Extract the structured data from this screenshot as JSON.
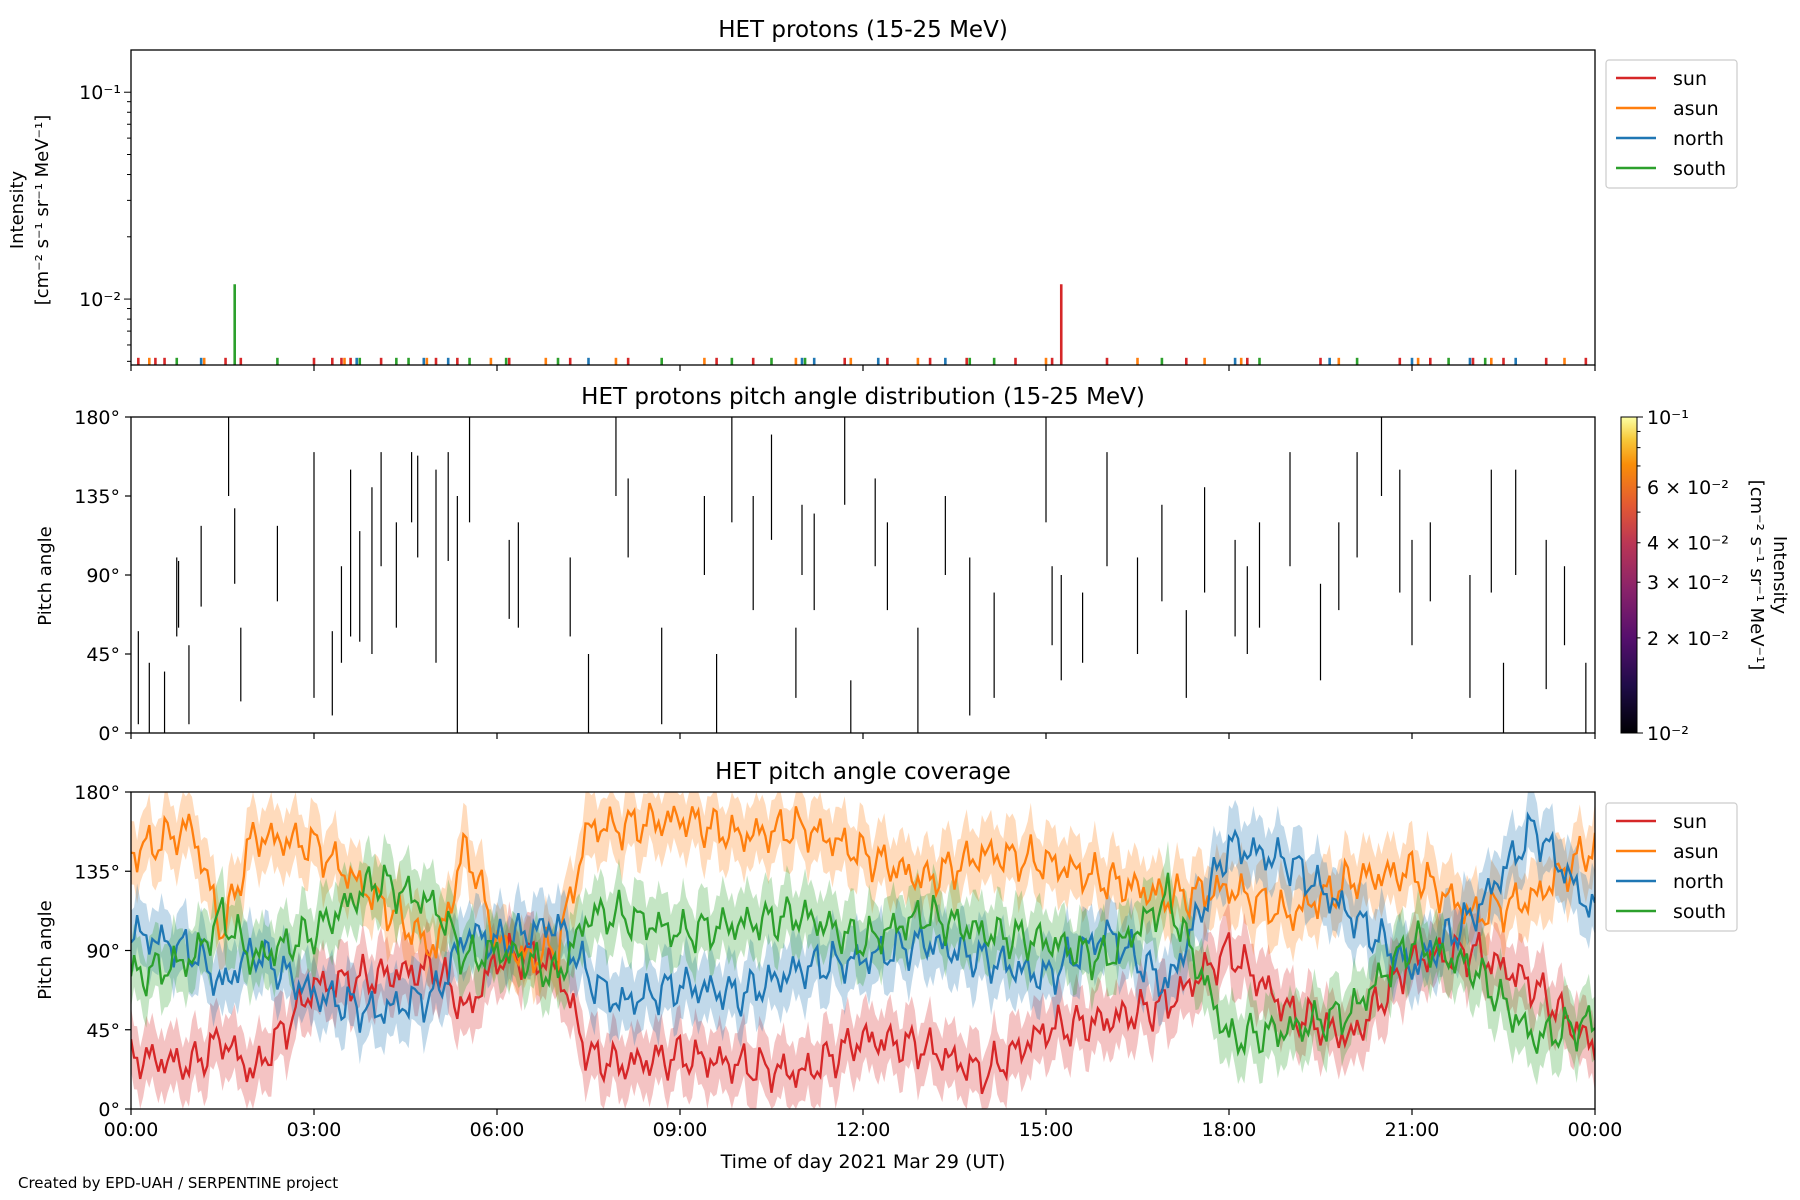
{
  "colors": {
    "sun": "#d62728",
    "asun": "#ff7f0e",
    "north": "#1f77b4",
    "south": "#2ca02c"
  },
  "footer": "Created by EPD-UAH / SERPENTINE project",
  "chart_data": [
    {
      "type": "line",
      "title": "HET protons (15-25 MeV)",
      "ylabel_line1": "Intensity",
      "ylabel_line2": "[cm⁻² s⁻¹ sr⁻¹ MeV⁻¹]",
      "yscale": "log",
      "ylim": [
        0.0048,
        0.16
      ],
      "yticks": [
        {
          "value": 0.1,
          "label": "10⁻¹"
        },
        {
          "value": 0.01,
          "label": "10⁻²"
        }
      ],
      "xlim_hours": [
        0,
        24
      ],
      "legend": {
        "placement": "outside-right",
        "entries": [
          "sun",
          "asun",
          "north",
          "south"
        ]
      },
      "baseline_spike_value": 0.0052,
      "series": [
        {
          "name": "sun",
          "spikes_hours": [
            0.12,
            0.4,
            0.55,
            1.55,
            1.8,
            3.0,
            3.3,
            3.45,
            3.6,
            4.1,
            5.0,
            5.35,
            6.2,
            7.2,
            8.15,
            9.6,
            10.2,
            11.7,
            12.4,
            13.1,
            13.7,
            14.5,
            15.1,
            15.25,
            16.0,
            17.3,
            18.3,
            19.5,
            20.8,
            21.3,
            22.0,
            22.5,
            23.2,
            23.85
          ],
          "values": [
            0.0052,
            0.0052,
            0.0052,
            0.0052,
            0.0052,
            0.0052,
            0.0052,
            0.0052,
            0.0052,
            0.0052,
            0.0052,
            0.0052,
            0.0052,
            0.0052,
            0.0052,
            0.0052,
            0.0052,
            0.0052,
            0.0052,
            0.0052,
            0.0052,
            0.0052,
            0.0052,
            0.0118,
            0.0052,
            0.0052,
            0.0052,
            0.0052,
            0.0052,
            0.0052,
            0.0052,
            0.0052,
            0.0052,
            0.0052
          ]
        },
        {
          "name": "asun",
          "spikes_hours": [
            0.3,
            1.2,
            3.5,
            4.85,
            5.9,
            6.8,
            7.95,
            9.4,
            10.9,
            11.8,
            12.9,
            15.0,
            16.5,
            17.6,
            18.2,
            19.8,
            21.1,
            22.3,
            23.5
          ],
          "values": [
            0.0052,
            0.0052,
            0.0052,
            0.0052,
            0.0052,
            0.0052,
            0.0052,
            0.0052,
            0.0052,
            0.0052,
            0.0052,
            0.0052,
            0.0052,
            0.0052,
            0.0052,
            0.0052,
            0.0052,
            0.0052,
            0.0052
          ]
        },
        {
          "name": "north",
          "spikes_hours": [
            1.15,
            3.7,
            4.8,
            5.2,
            7.5,
            11.0,
            11.2,
            12.25,
            13.35,
            18.1,
            19.65,
            21.0,
            21.95,
            22.7
          ],
          "values": [
            0.0052,
            0.0052,
            0.0052,
            0.0052,
            0.0052,
            0.0052,
            0.0052,
            0.0052,
            0.0052,
            0.0052,
            0.0052,
            0.0052,
            0.0052,
            0.0052
          ]
        },
        {
          "name": "south",
          "spikes_hours": [
            0.75,
            1.7,
            2.4,
            3.75,
            4.35,
            4.55,
            5.55,
            6.15,
            7.0,
            8.7,
            9.85,
            10.5,
            11.05,
            13.75,
            14.15,
            16.9,
            18.5,
            20.1,
            21.6,
            22.2
          ],
          "values": [
            0.0052,
            0.0118,
            0.0052,
            0.0052,
            0.0052,
            0.0052,
            0.0052,
            0.0052,
            0.0052,
            0.0052,
            0.0052,
            0.0052,
            0.0052,
            0.0052,
            0.0052,
            0.0052,
            0.0052,
            0.0052,
            0.0052,
            0.0052
          ]
        }
      ]
    },
    {
      "type": "heatmap",
      "title": "HET protons pitch angle distribution (15-25 MeV)",
      "ylabel": "Pitch angle",
      "ylim": [
        0,
        180
      ],
      "yticks": [
        {
          "value": 0,
          "label": "0°"
        },
        {
          "value": 45,
          "label": "45°"
        },
        {
          "value": 90,
          "label": "90°"
        },
        {
          "value": 135,
          "label": "135°"
        },
        {
          "value": 180,
          "label": "180°"
        }
      ],
      "xlim_hours": [
        0,
        24
      ],
      "colorbar": {
        "label_line1": "Intensity",
        "label_line2": "[cm⁻² s⁻¹ sr⁻¹ MeV⁻¹]",
        "scale": "log",
        "range": [
          0.01,
          0.1
        ],
        "cmap": "inferno",
        "ticks": [
          {
            "value": 0.1,
            "label": "10⁻¹"
          },
          {
            "value": 0.06,
            "label": "6 × 10⁻²"
          },
          {
            "value": 0.04,
            "label": "4 × 10⁻²"
          },
          {
            "value": 0.03,
            "label": "3 × 10⁻²"
          },
          {
            "value": 0.02,
            "label": "2 × 10⁻²"
          },
          {
            "value": 0.01,
            "label": "10⁻²"
          }
        ]
      },
      "segments": [
        [
          0.12,
          5,
          58
        ],
        [
          0.3,
          0,
          40
        ],
        [
          0.55,
          0,
          35
        ],
        [
          0.75,
          55,
          100
        ],
        [
          0.78,
          60,
          98
        ],
        [
          0.95,
          5,
          50
        ],
        [
          1.15,
          72,
          118
        ],
        [
          1.6,
          135,
          180
        ],
        [
          1.7,
          85,
          128
        ],
        [
          1.8,
          18,
          60
        ],
        [
          2.4,
          75,
          118
        ],
        [
          3.0,
          20,
          160
        ],
        [
          3.3,
          10,
          58
        ],
        [
          3.45,
          40,
          95
        ],
        [
          3.6,
          55,
          150
        ],
        [
          3.75,
          52,
          115
        ],
        [
          3.95,
          45,
          140
        ],
        [
          4.1,
          95,
          160
        ],
        [
          4.35,
          60,
          120
        ],
        [
          4.6,
          120,
          160
        ],
        [
          4.7,
          100,
          158
        ],
        [
          5.0,
          40,
          150
        ],
        [
          5.2,
          98,
          160
        ],
        [
          5.35,
          0,
          135
        ],
        [
          5.55,
          120,
          180
        ],
        [
          6.2,
          65,
          110
        ],
        [
          6.35,
          60,
          120
        ],
        [
          7.2,
          55,
          100
        ],
        [
          7.5,
          0,
          45
        ],
        [
          7.95,
          135,
          180
        ],
        [
          8.15,
          100,
          145
        ],
        [
          8.7,
          5,
          60
        ],
        [
          9.4,
          90,
          135
        ],
        [
          9.6,
          0,
          45
        ],
        [
          9.85,
          120,
          180
        ],
        [
          10.2,
          70,
          135
        ],
        [
          10.5,
          110,
          170
        ],
        [
          10.9,
          20,
          60
        ],
        [
          11.0,
          90,
          130
        ],
        [
          11.2,
          70,
          125
        ],
        [
          11.7,
          130,
          180
        ],
        [
          11.8,
          0,
          30
        ],
        [
          12.2,
          95,
          145
        ],
        [
          12.4,
          70,
          120
        ],
        [
          12.9,
          0,
          60
        ],
        [
          13.35,
          90,
          135
        ],
        [
          13.75,
          10,
          100
        ],
        [
          14.15,
          20,
          80
        ],
        [
          15.0,
          120,
          180
        ],
        [
          15.1,
          50,
          95
        ],
        [
          15.25,
          30,
          90
        ],
        [
          15.6,
          40,
          80
        ],
        [
          16.0,
          95,
          160
        ],
        [
          16.5,
          45,
          100
        ],
        [
          16.9,
          75,
          130
        ],
        [
          17.3,
          20,
          70
        ],
        [
          17.6,
          80,
          140
        ],
        [
          18.1,
          55,
          110
        ],
        [
          18.3,
          45,
          95
        ],
        [
          18.5,
          60,
          120
        ],
        [
          19.0,
          95,
          160
        ],
        [
          19.5,
          30,
          85
        ],
        [
          19.8,
          70,
          120
        ],
        [
          20.1,
          100,
          160
        ],
        [
          20.5,
          135,
          180
        ],
        [
          20.8,
          80,
          150
        ],
        [
          21.0,
          50,
          110
        ],
        [
          21.3,
          75,
          120
        ],
        [
          21.95,
          20,
          90
        ],
        [
          22.3,
          80,
          150
        ],
        [
          22.5,
          0,
          40
        ],
        [
          22.7,
          90,
          150
        ],
        [
          23.2,
          25,
          110
        ],
        [
          23.5,
          50,
          95
        ],
        [
          23.85,
          0,
          40
        ]
      ]
    },
    {
      "type": "line",
      "title": "HET pitch angle coverage",
      "ylabel": "Pitch angle",
      "xlabel": "Time of day 2021 Mar 29 (UT)",
      "ylim": [
        0,
        180
      ],
      "yticks": [
        {
          "value": 0,
          "label": "0°"
        },
        {
          "value": 45,
          "label": "45°"
        },
        {
          "value": 90,
          "label": "90°"
        },
        {
          "value": 135,
          "label": "135°"
        },
        {
          "value": 180,
          "label": "180°"
        }
      ],
      "xlim_hours": [
        0,
        24
      ],
      "xticks": [
        {
          "value": 0,
          "label": "00:00"
        },
        {
          "value": 3,
          "label": "03:00"
        },
        {
          "value": 6,
          "label": "06:00"
        },
        {
          "value": 9,
          "label": "09:00"
        },
        {
          "value": 12,
          "label": "12:00"
        },
        {
          "value": 15,
          "label": "15:00"
        },
        {
          "value": 18,
          "label": "18:00"
        },
        {
          "value": 21,
          "label": "21:00"
        },
        {
          "value": 24,
          "label": "00:00"
        }
      ],
      "legend": {
        "placement": "outside-right",
        "entries": [
          "sun",
          "asun",
          "north",
          "south"
        ]
      },
      "band_halfwidth_deg": 18,
      "series": [
        {
          "name": "sun",
          "x_hours": [
            0,
            1,
            1.5,
            2,
            3,
            4,
            5,
            5.5,
            6,
            6.5,
            7,
            7.5,
            8,
            9,
            10,
            11,
            12,
            13,
            14,
            15,
            16,
            17,
            18,
            19,
            20,
            21,
            22,
            23,
            24
          ],
          "values": [
            30,
            25,
            40,
            20,
            70,
            75,
            80,
            55,
            85,
            88,
            80,
            30,
            25,
            30,
            25,
            20,
            40,
            35,
            20,
            45,
            50,
            60,
            90,
            55,
            40,
            85,
            90,
            70,
            35
          ]
        },
        {
          "name": "asun",
          "x_hours": [
            0,
            1,
            1.5,
            2,
            3,
            4,
            5,
            5.5,
            6,
            6.5,
            7,
            7.5,
            8,
            9,
            10,
            11,
            12,
            13,
            14,
            15,
            16,
            17,
            18,
            19,
            20,
            21,
            22,
            23,
            24
          ],
          "values": [
            145,
            160,
            100,
            155,
            150,
            120,
            90,
            150,
            95,
            85,
            92,
            160,
            160,
            165,
            155,
            160,
            145,
            130,
            145,
            140,
            130,
            120,
            125,
            110,
            130,
            135,
            110,
            120,
            150
          ]
        },
        {
          "name": "north",
          "x_hours": [
            0,
            1,
            1.5,
            2,
            3,
            4,
            5,
            5.5,
            6,
            6.5,
            7,
            7.5,
            8,
            9,
            10,
            11,
            12,
            13,
            14,
            15,
            16,
            17,
            18,
            19,
            20,
            21,
            22,
            23,
            24
          ],
          "values": [
            100,
            90,
            70,
            90,
            65,
            55,
            65,
            100,
            95,
            100,
            105,
            75,
            60,
            70,
            65,
            80,
            85,
            95,
            85,
            75,
            100,
            70,
            150,
            140,
            110,
            80,
            110,
            160,
            110
          ]
        },
        {
          "name": "south",
          "x_hours": [
            0,
            1,
            1.5,
            2,
            3,
            4,
            5,
            5.5,
            6,
            6.5,
            7,
            7.5,
            8,
            9,
            10,
            11,
            12,
            13,
            14,
            15,
            16,
            17,
            18,
            19,
            20,
            21,
            22,
            23,
            24
          ],
          "values": [
            75,
            85,
            110,
            85,
            100,
            130,
            115,
            85,
            90,
            85,
            75,
            110,
            110,
            100,
            105,
            110,
            95,
            110,
            100,
            95,
            85,
            120,
            40,
            45,
            55,
            95,
            80,
            40,
            50
          ]
        }
      ]
    }
  ]
}
